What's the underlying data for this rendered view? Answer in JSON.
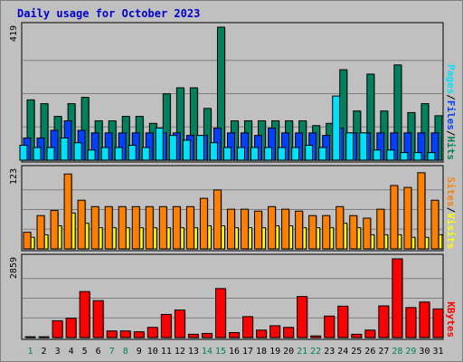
{
  "chart_data": [
    {
      "type": "bar",
      "title": "Daily usage for October 2023",
      "panel": "hits-files-pages",
      "categories": [
        "1",
        "2",
        "3",
        "4",
        "5",
        "6",
        "7",
        "8",
        "9",
        "10",
        "11",
        "12",
        "13",
        "14",
        "15",
        "16",
        "17",
        "18",
        "19",
        "20",
        "21",
        "22",
        "23",
        "24",
        "25",
        "26",
        "27",
        "28",
        "29",
        "30",
        "31"
      ],
      "weekend_days": [
        "1",
        "7",
        "8",
        "14",
        "15",
        "21",
        "22",
        "28",
        "29"
      ],
      "ymax_label": "419",
      "ylim": [
        0,
        419
      ],
      "grid": true,
      "legend": [
        {
          "label": "Pages",
          "color": "#00e0ff"
        },
        {
          "label": "Files",
          "color": "#0040ff"
        },
        {
          "label": "Hits",
          "color": "#00805c"
        }
      ],
      "separator": "/",
      "series": [
        {
          "name": "Hits",
          "color": "#00805c",
          "values": [
            190,
            178,
            138,
            178,
            198,
            124,
            124,
            138,
            138,
            116,
            209,
            228,
            228,
            163,
            419,
            124,
            124,
            124,
            124,
            124,
            124,
            109,
            116,
            285,
            155,
            271,
            155,
            300,
            150,
            178,
            140
          ]
        },
        {
          "name": "Files",
          "color": "#0040ff",
          "values": [
            70,
            70,
            94,
            124,
            94,
            86,
            86,
            86,
            86,
            86,
            86,
            86,
            78,
            78,
            101,
            86,
            86,
            78,
            101,
            86,
            86,
            86,
            78,
            101,
            86,
            86,
            86,
            86,
            86,
            86,
            86
          ]
        },
        {
          "name": "Pages",
          "color": "#00e0ff",
          "values": [
            47,
            40,
            40,
            70,
            55,
            32,
            40,
            40,
            47,
            40,
            101,
            78,
            63,
            78,
            55,
            40,
            40,
            40,
            40,
            40,
            40,
            47,
            40,
            202,
            86,
            86,
            32,
            32,
            24,
            24,
            24
          ]
        }
      ]
    },
    {
      "type": "bar",
      "panel": "visits-sites",
      "categories": [
        "1",
        "2",
        "3",
        "4",
        "5",
        "6",
        "7",
        "8",
        "9",
        "10",
        "11",
        "12",
        "13",
        "14",
        "15",
        "16",
        "17",
        "18",
        "19",
        "20",
        "21",
        "22",
        "23",
        "24",
        "25",
        "26",
        "27",
        "28",
        "29",
        "30",
        "31"
      ],
      "ymax_label": "123",
      "ylim": [
        0,
        123
      ],
      "grid": true,
      "legend": [
        {
          "label": "Sites",
          "color": "#ff8000"
        },
        {
          "label": "Visits",
          "color": "#ffff00"
        }
      ],
      "separator": "/",
      "series": [
        {
          "name": "Visits",
          "color": "#ffff00",
          "values": [
            18,
            22,
            36,
            56,
            40,
            33,
            33,
            33,
            33,
            33,
            33,
            33,
            33,
            36,
            36,
            33,
            33,
            33,
            36,
            36,
            33,
            33,
            33,
            40,
            33,
            22,
            22,
            22,
            18,
            18,
            22
          ]
        },
        {
          "name": "Sites",
          "color": "#ff8000",
          "values": [
            26,
            52,
            60,
            117,
            76,
            66,
            66,
            66,
            66,
            66,
            66,
            66,
            66,
            79,
            92,
            62,
            62,
            59,
            66,
            62,
            59,
            52,
            52,
            66,
            52,
            48,
            62,
            99,
            96,
            119,
            76
          ]
        }
      ]
    },
    {
      "type": "bar",
      "panel": "kbytes",
      "categories": [
        "1",
        "2",
        "3",
        "4",
        "5",
        "6",
        "7",
        "8",
        "9",
        "10",
        "11",
        "12",
        "13",
        "14",
        "15",
        "16",
        "17",
        "18",
        "19",
        "20",
        "21",
        "22",
        "23",
        "24",
        "25",
        "26",
        "27",
        "28",
        "29",
        "30",
        "31"
      ],
      "ymax_label": "2859",
      "ylim": [
        0,
        2859
      ],
      "grid": true,
      "legend": [
        {
          "label": "KBytes",
          "color": "#ff0000"
        }
      ],
      "series": [
        {
          "name": "KBytes",
          "color": "#ff0000",
          "values": [
            30,
            30,
            610,
            700,
            1670,
            1340,
            240,
            240,
            210,
            370,
            840,
            1000,
            120,
            150,
            1780,
            180,
            760,
            270,
            430,
            370,
            1490,
            60,
            780,
            1140,
            120,
            270,
            1150,
            2859,
            1090,
            1290,
            1040
          ]
        }
      ]
    }
  ],
  "theme": {
    "weekday_label_color": "#000000",
    "weekend_label_color": "#00805c",
    "outline_color": "#000000",
    "shadow_color": "#808080",
    "grid_color": "#7f7f7f"
  }
}
